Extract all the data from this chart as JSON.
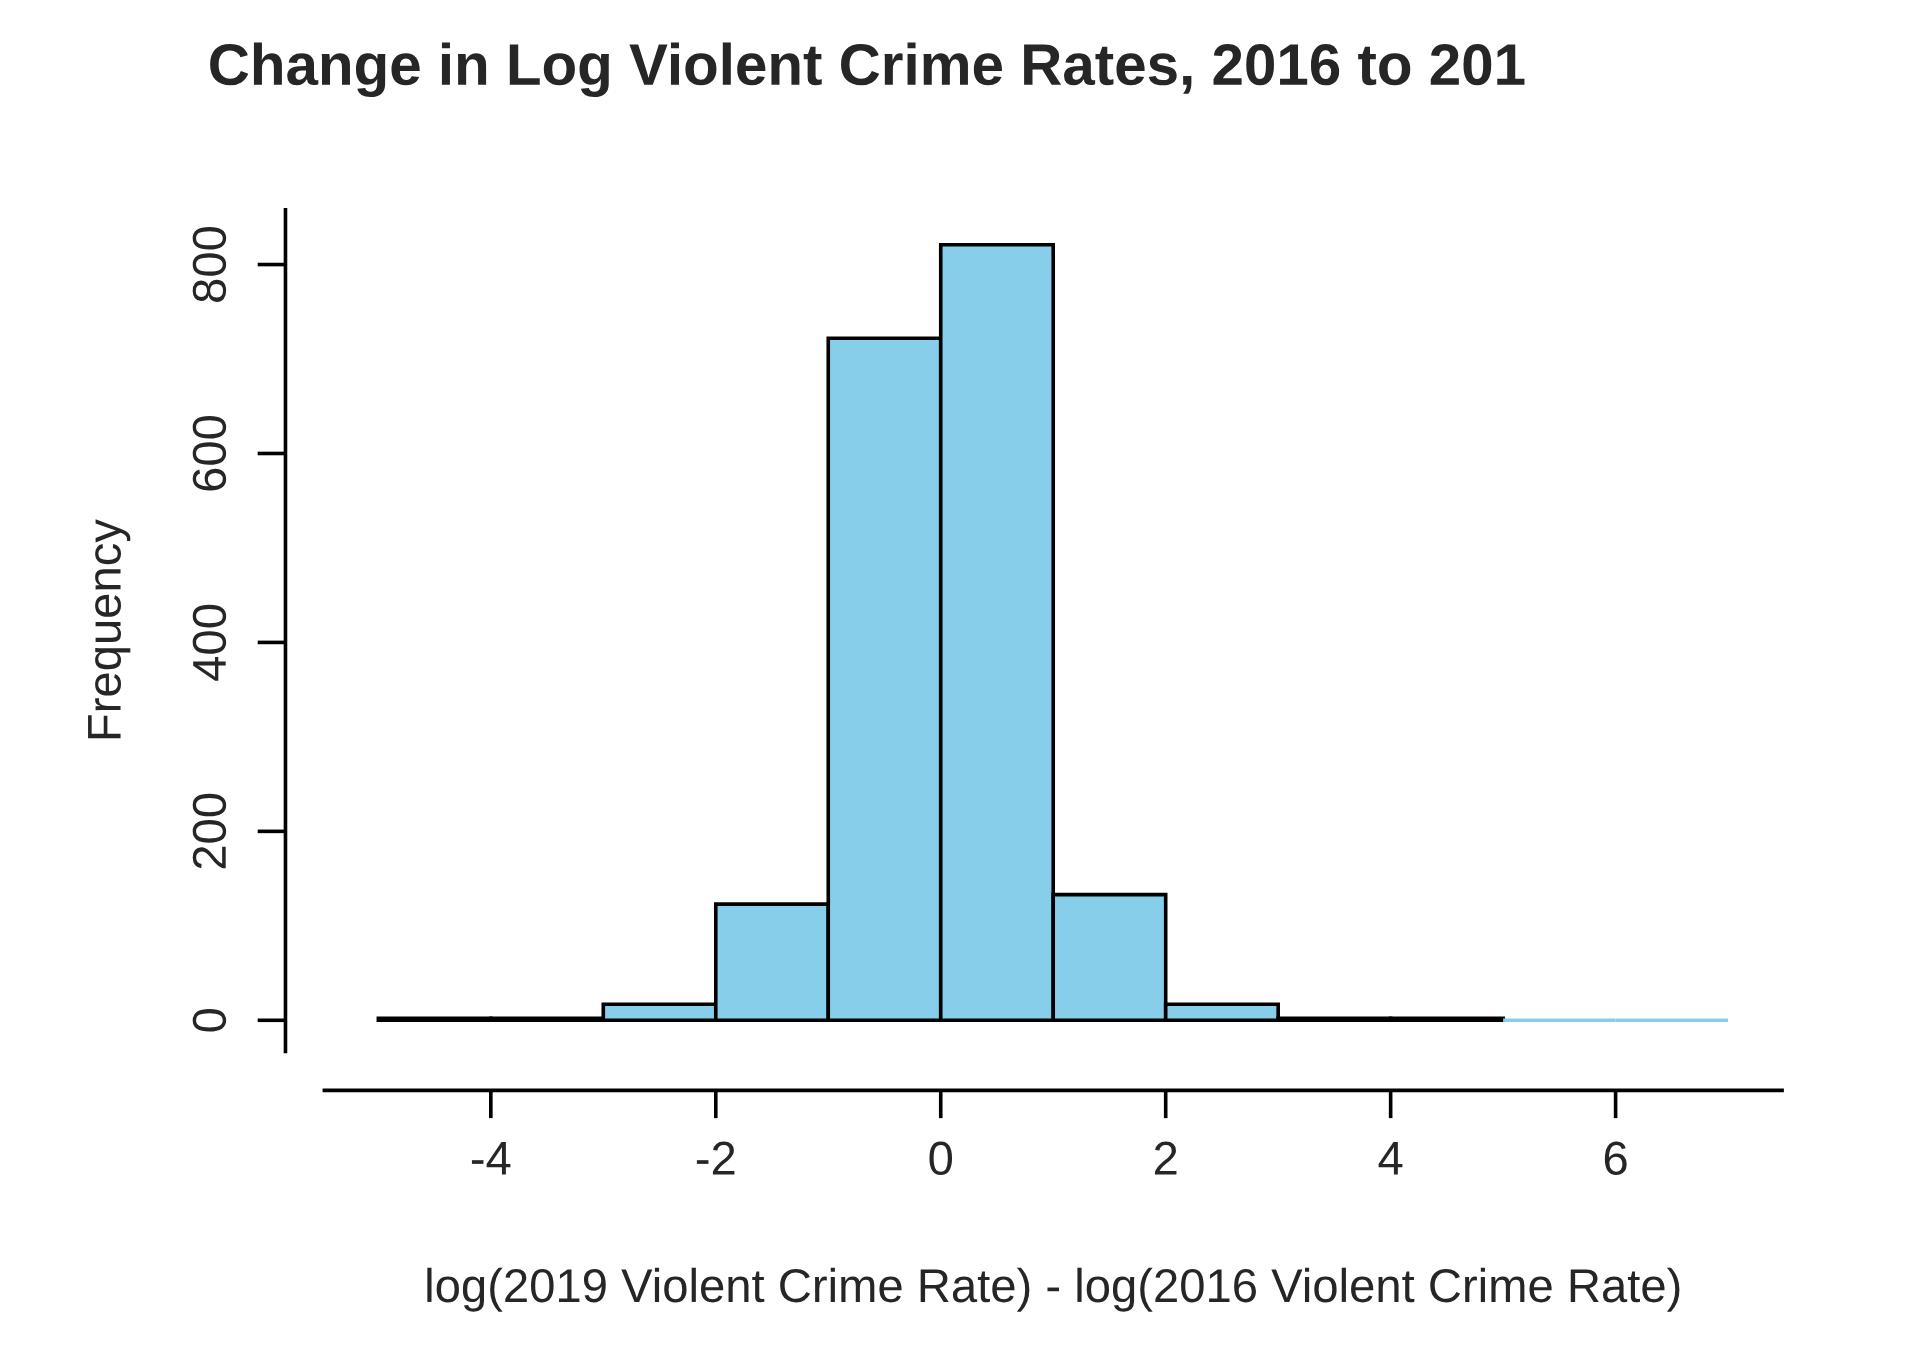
{
  "chart_data": {
    "type": "histogram",
    "title": "Change in Log Violent Crime Rates, 2016 to 201",
    "xlabel": "log(2019 Violent Crime Rate) - log(2016 Violent Crime Rate)",
    "ylabel": "Frequency",
    "bins": [
      -5,
      -4,
      -3,
      -2,
      -1,
      0,
      1,
      2,
      3,
      4,
      5,
      6,
      7
    ],
    "values": [
      2,
      2,
      17,
      123,
      722,
      821,
      133,
      17,
      2,
      2,
      0,
      0
    ],
    "color": "#87ceeb",
    "xlim": [
      -5.48,
      7.48
    ],
    "ylim": [
      -33,
      858
    ],
    "xticks": [
      -4,
      -2,
      0,
      2,
      4,
      6
    ],
    "yticks": [
      0,
      200,
      400,
      600,
      800
    ],
    "grid": false,
    "legend": false
  }
}
